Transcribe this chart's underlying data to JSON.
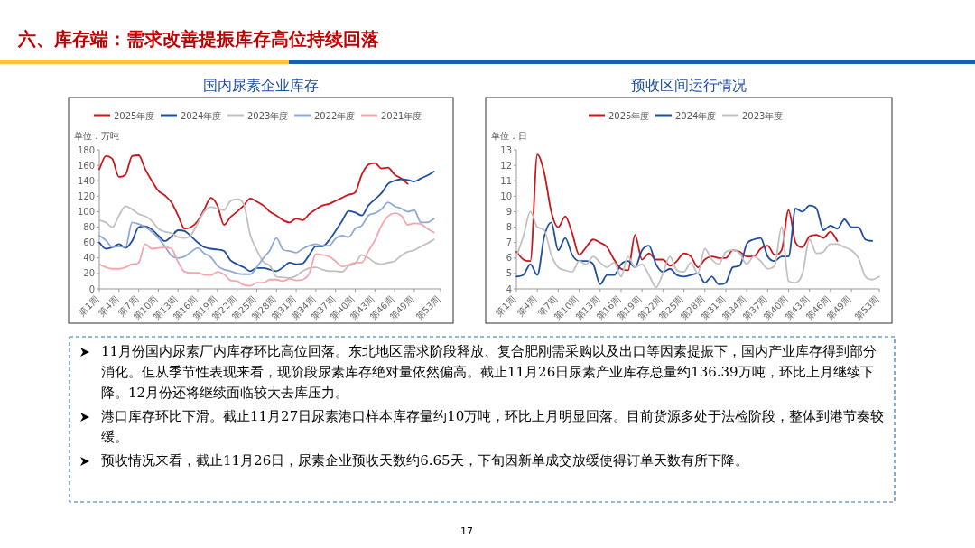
{
  "chart_data": [
    {
      "type": "other",
      "title": "六、库存端：需求改善提振库存高位持续回落",
      "annotations": [
        "11月份国内尿素厂内库存环比高位回落。东北地区需求阶段释放、复合肥刚需采购以及出口等因素提振下，国内产业库存得到部分消化。但从季节性表现来看，现阶段尿素库存绝对量依然偏高。截止11月26日尿素产业库存总量约136.39万吨，环比上月继续下降。12月份还将继续面临较大去库压力。",
        "港口库存环比下滑。截止11月27日尿素港口样本库存量约10万吨，环比上月明显回落。目前货源多处于法检阶段，整体到港节奏较缓。",
        "预收情况来看，截止11月26日，尿素企业预收天数约6.65天，下旬因新单成交放缓使得订单天数有所下降。",
        "17"
      ]
    },
    {
      "type": "line",
      "title": "国内尿素企业库存",
      "ylabel": "单位：万吨",
      "legend": "top",
      "categories": [
        "第1周",
        null,
        null,
        "第4周",
        null,
        null,
        "第7周",
        null,
        null,
        "第10周",
        null,
        null,
        "第13周",
        null,
        null,
        "第16周",
        null,
        null,
        "第19周",
        null,
        null,
        "第22周",
        null,
        null,
        "第25周",
        null,
        null,
        "第28周",
        null,
        null,
        "第31周",
        null,
        null,
        "第34周",
        null,
        null,
        "第37周",
        null,
        null,
        "第40周",
        null,
        null,
        "第43周",
        null,
        null,
        "第46周",
        null,
        null,
        "第49周",
        null,
        null,
        null,
        "第53周"
      ],
      "ylim": [
        0,
        180
      ],
      "yticks": [
        0,
        20,
        40,
        60,
        80,
        100,
        120,
        140,
        160,
        180
      ],
      "series": [
        {
          "name": "2025年度",
          "color": "#c8161d",
          "values": [
            155,
            172,
            168,
            145,
            148,
            172,
            173,
            155,
            140,
            127,
            121,
            112,
            95,
            78,
            80,
            88,
            103,
            118,
            108,
            83,
            93,
            100,
            108,
            117,
            113,
            108,
            100,
            95,
            89,
            86,
            91,
            89,
            97,
            103,
            108,
            110,
            114,
            118,
            122,
            125,
            148,
            161,
            163,
            156,
            157,
            148,
            143,
            136,
            null,
            null,
            null,
            null,
            null
          ]
        },
        {
          "name": "2024年度",
          "color": "#1f4e9c",
          "values": [
            60,
            52,
            54,
            58,
            53,
            62,
            80,
            81,
            77,
            69,
            62,
            68,
            76,
            75,
            68,
            60,
            54,
            52,
            51,
            49,
            37,
            32,
            28,
            23,
            27,
            27,
            25,
            23,
            28,
            34,
            32,
            33,
            44,
            55,
            55,
            63,
            75,
            88,
            101,
            99,
            95,
            108,
            116,
            124,
            136,
            140,
            142,
            141,
            139,
            143,
            147,
            152,
            null
          ]
        },
        {
          "name": "2023年度",
          "color": "#c0c0c0",
          "values": [
            89,
            86,
            80,
            95,
            107,
            103,
            97,
            94,
            88,
            78,
            74,
            72,
            67,
            66,
            70,
            85,
            100,
            106,
            104,
            102,
            114,
            116,
            110,
            70,
            50,
            35,
            30,
            16,
            15,
            14,
            17,
            23,
            27,
            28,
            25,
            23,
            23,
            22,
            30,
            33,
            44,
            40,
            34,
            32,
            34,
            36,
            43,
            48,
            50,
            55,
            59,
            64,
            null
          ]
        },
        {
          "name": "2022年度",
          "color": "#8ea9d8",
          "values": [
            69,
            63,
            54,
            55,
            54,
            86,
            84,
            80,
            74,
            66,
            55,
            43,
            40,
            42,
            48,
            53,
            46,
            41,
            30,
            25,
            23,
            20,
            19,
            19,
            28,
            40,
            50,
            66,
            51,
            49,
            47,
            52,
            56,
            58,
            56,
            56,
            65,
            69,
            67,
            78,
            82,
            95,
            98,
            103,
            112,
            107,
            104,
            100,
            102,
            86,
            86,
            91,
            null
          ]
        },
        {
          "name": "2021年度",
          "color": "#f4a6ae",
          "values": [
            32,
            28,
            26,
            26,
            28,
            32,
            34,
            58,
            52,
            53,
            54,
            52,
            35,
            22,
            21,
            21,
            18,
            18,
            22,
            19,
            11,
            10,
            5,
            4,
            8,
            8,
            12,
            12,
            10,
            13,
            11,
            12,
            20,
            45,
            44,
            42,
            36,
            29,
            31,
            34,
            34,
            49,
            63,
            82,
            94,
            98,
            95,
            83,
            85,
            84,
            78,
            73,
            null
          ]
        }
      ]
    },
    {
      "type": "line",
      "title": "预收区间运行情况",
      "ylabel": "单位：日",
      "legend": "top",
      "categories": [
        "第1周",
        null,
        null,
        "第4周",
        null,
        null,
        "第7周",
        null,
        null,
        "第10周",
        null,
        null,
        "第13周",
        null,
        null,
        "第16周",
        null,
        null,
        "第19周",
        null,
        null,
        "第22周",
        null,
        null,
        "第25周",
        null,
        null,
        "第28周",
        null,
        null,
        "第31周",
        null,
        null,
        "第34周",
        null,
        null,
        "第37周",
        null,
        null,
        "第40周",
        null,
        null,
        "第43周",
        null,
        null,
        "第46周",
        null,
        null,
        "第49周",
        null,
        null,
        null,
        "第53周"
      ],
      "ylim": [
        4,
        13
      ],
      "yticks": [
        4,
        5,
        6,
        7,
        8,
        9,
        10,
        11,
        12,
        13
      ],
      "series": [
        {
          "name": "2025年度",
          "color": "#c8161d",
          "values": [
            6.4,
            5.9,
            5.8,
            12.7,
            11.5,
            9.0,
            8.0,
            8.7,
            7.6,
            6.2,
            6.7,
            7.2,
            7.0,
            6.7,
            5.9,
            5.3,
            5.2,
            7.5,
            5.9,
            6.3,
            5.9,
            5.9,
            5.5,
            5.8,
            6.3,
            6.1,
            5.4,
            5.9,
            6.1,
            6.0,
            6.0,
            6.5,
            6.4,
            6.1,
            6.1,
            6.6,
            6.8,
            6.2,
            6.5,
            9.1,
            7.0,
            6.7,
            7.4,
            7.5,
            7.3,
            7.7,
            7.1,
            null,
            null,
            null,
            null,
            null,
            null
          ]
        },
        {
          "name": "2024年度",
          "color": "#1f4e9c",
          "values": [
            4.8,
            4.9,
            5.6,
            4.9,
            7.4,
            8.3,
            6.5,
            7.3,
            6.2,
            5.8,
            5.8,
            5.6,
            4.3,
            4.9,
            4.9,
            5.6,
            5.8,
            5.4,
            6.5,
            6.8,
            5.6,
            5.1,
            5.3,
            4.9,
            4.8,
            4.9,
            5.0,
            4.4,
            4.8,
            4.3,
            4.4,
            5.4,
            5.5,
            6.9,
            7.2,
            7.3,
            6.1,
            5.8,
            6.1,
            6.1,
            9.2,
            9.0,
            9.4,
            9.2,
            7.8,
            8.1,
            7.9,
            8.5,
            8.0,
            8.0,
            7.2,
            7.1,
            null
          ]
        },
        {
          "name": "2023年度",
          "color": "#c0c0c0",
          "values": [
            6.1,
            7.4,
            9.0,
            8.0,
            7.8,
            6.2,
            5.4,
            5.2,
            5.1,
            5.8,
            5.6,
            6.1,
            5.7,
            5.4,
            5.7,
            4.8,
            6.1,
            5.4,
            5.6,
            4.9,
            4.1,
            5.0,
            6.1,
            5.2,
            5.1,
            5.7,
            5.0,
            6.6,
            5.9,
            5.6,
            6.4,
            6.5,
            6.3,
            5.6,
            6.1,
            5.8,
            5.3,
            5.5,
            8.0,
            4.5,
            4.4,
            5.0,
            7.2,
            6.3,
            6.4,
            6.9,
            6.9,
            6.7,
            6.5,
            6.0,
            4.8,
            4.6,
            4.8
          ]
        }
      ]
    }
  ]
}
